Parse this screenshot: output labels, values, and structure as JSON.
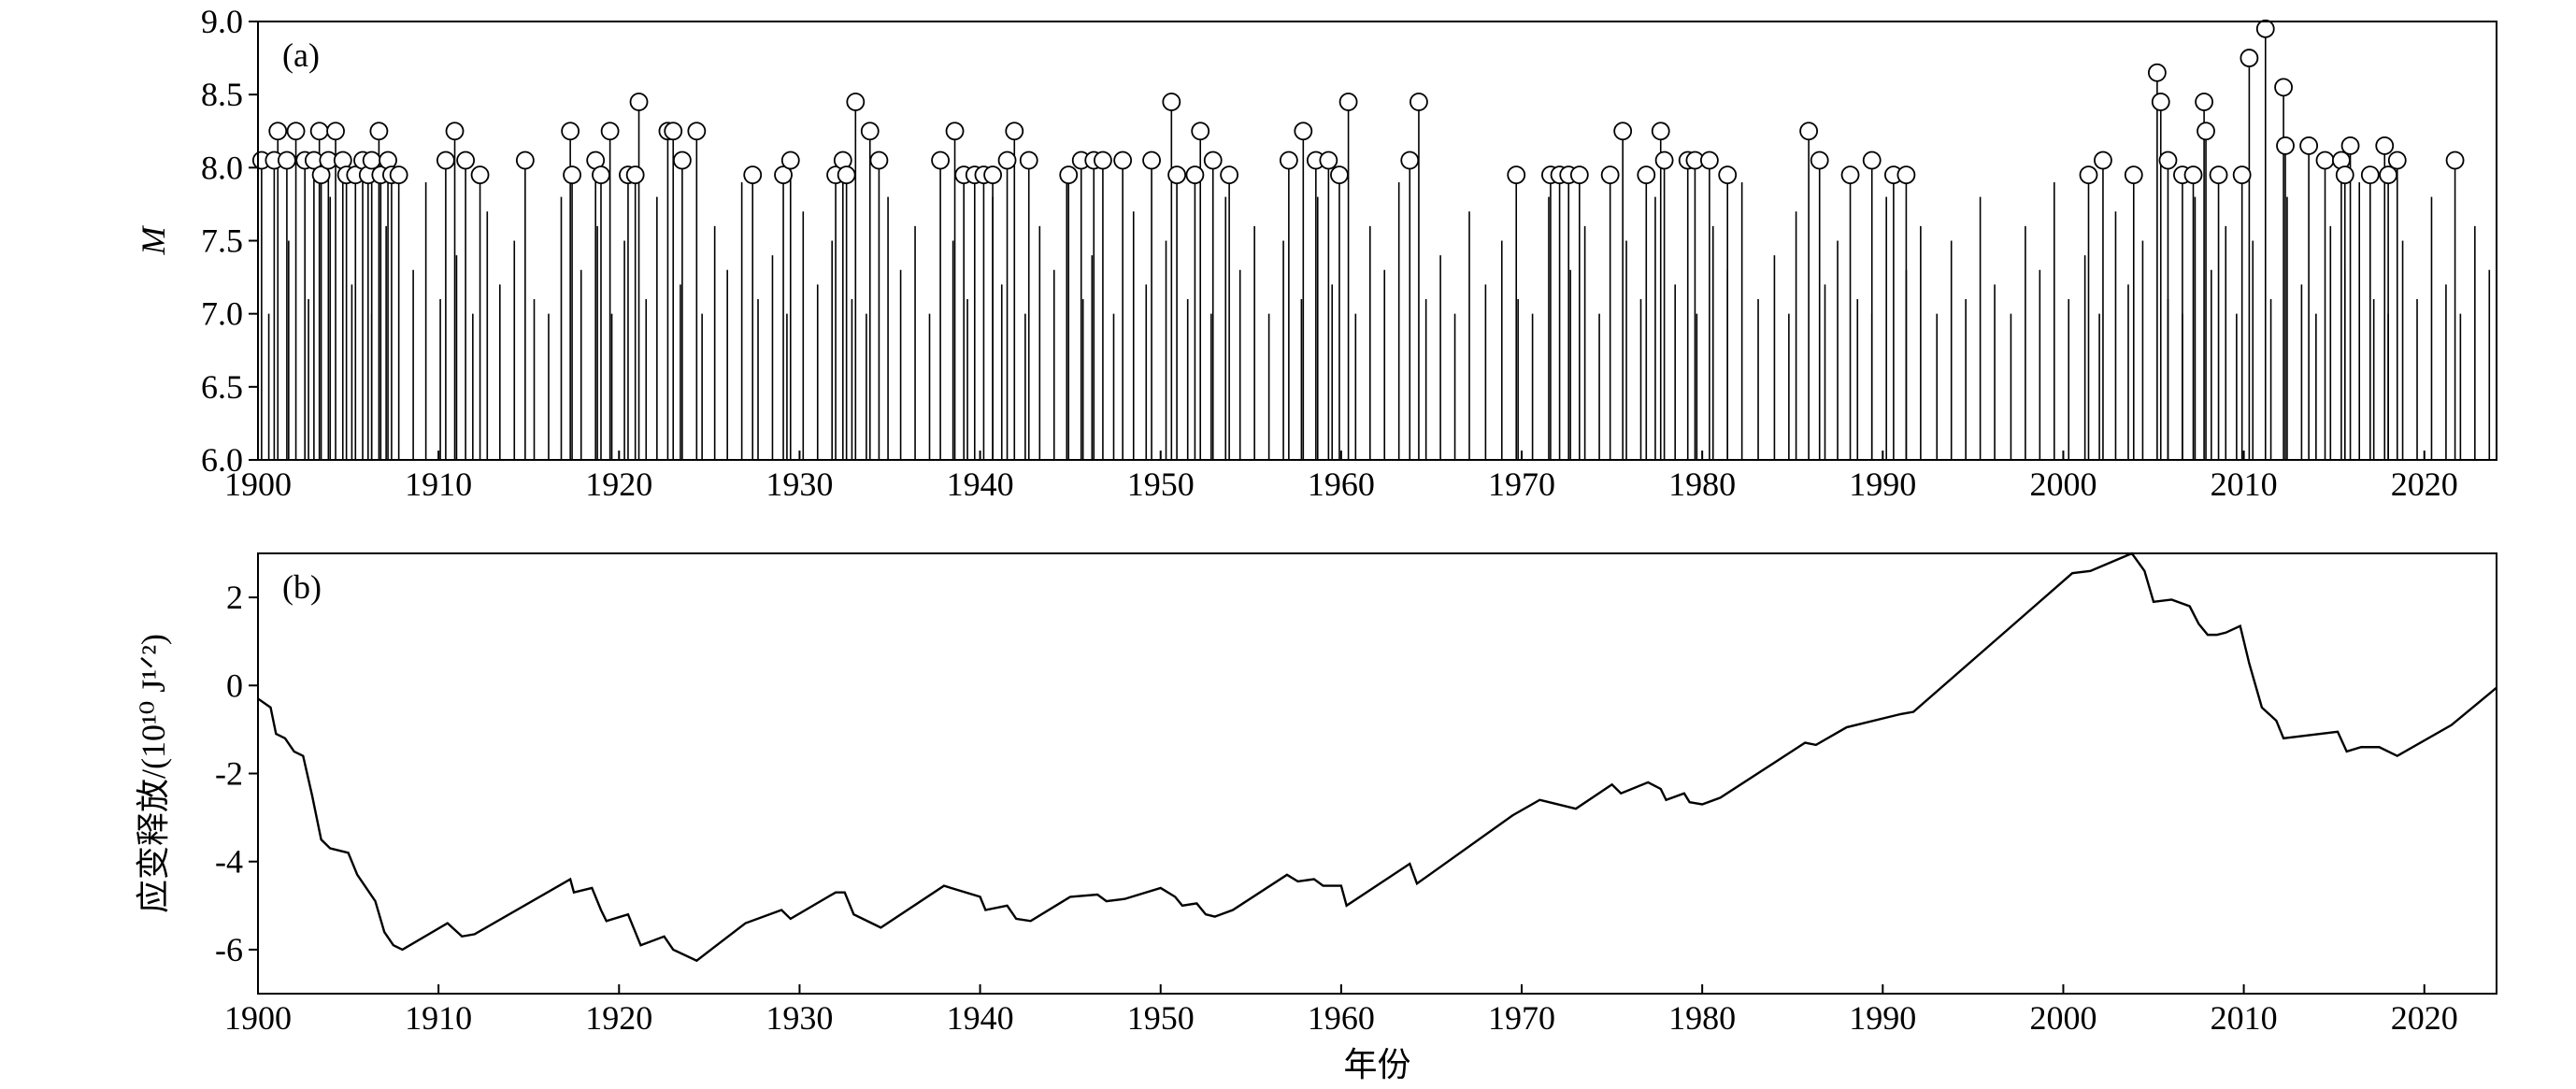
{
  "chart_data": [
    {
      "type": "stem",
      "label": "(a)",
      "ylabel": "M",
      "xlim": [
        1900,
        2024
      ],
      "xticks": [
        1900,
        1910,
        1920,
        1930,
        1940,
        1950,
        1960,
        1970,
        1980,
        1990,
        2000,
        2010,
        2020
      ],
      "ylim": [
        6,
        9
      ],
      "yticks": [
        {
          "value": 6,
          "label": "6.0"
        },
        6.5,
        {
          "value": 7,
          "label": "7.0"
        },
        7.5,
        {
          "value": 8,
          "label": "8.0"
        },
        8.5,
        {
          "value": 9,
          "label": "9.0"
        }
      ],
      "series": [
        {
          "color": "#000000",
          "marker": "none",
          "x": [
            1900.6,
            1901.7,
            1902.8,
            1904.0,
            1905.2,
            1906.3,
            1907.1,
            1908.6,
            1909.3,
            1910.1,
            1911.0,
            1911.9,
            1912.7,
            1913.4,
            1914.2,
            1915.3,
            1916.1,
            1916.8,
            1917.9,
            1918.8,
            1919.6,
            1920.3,
            1921.5,
            1922.1,
            1923.4,
            1924.6,
            1925.3,
            1926.0,
            1926.8,
            1927.7,
            1928.5,
            1929.3,
            1930.2,
            1931.0,
            1931.8,
            1932.9,
            1933.7,
            1934.9,
            1935.6,
            1936.4,
            1937.2,
            1938.5,
            1939.3,
            1940.7,
            1941.2,
            1942.5,
            1943.3,
            1944.1,
            1944.8,
            1945.7,
            1946.2,
            1947.4,
            1948.5,
            1949.2,
            1950.3,
            1951.5,
            1952.8,
            1953.6,
            1954.4,
            1955.2,
            1956.0,
            1956.8,
            1957.8,
            1958.7,
            1959.5,
            1960.8,
            1961.6,
            1962.4,
            1963.2,
            1964.7,
            1965.5,
            1966.3,
            1967.1,
            1968.0,
            1968.9,
            1969.8,
            1970.6,
            1971.5,
            1972.7,
            1973.5,
            1974.3,
            1975.8,
            1976.6,
            1977.4,
            1978.5,
            1979.7,
            1980.6,
            1981.4,
            1982.2,
            1983.1,
            1984.0,
            1984.8,
            1985.2,
            1986.8,
            1987.5,
            1988.6,
            1989.4,
            1990.2,
            1991.3,
            1992.1,
            1993.0,
            1993.8,
            1994.6,
            1995.4,
            1996.2,
            1997.1,
            1997.9,
            1998.7,
            1999.5,
            2000.3,
            2001.2,
            2002.0,
            2002.9,
            2003.6,
            2004.4,
            2005.8,
            2006.6,
            2007.3,
            2008.2,
            2009.0,
            2009.6,
            2010.5,
            2011.5,
            2012.4,
            2013.2,
            2014.0,
            2014.8,
            2015.6,
            2016.4,
            2017.2,
            2018.0,
            2018.8,
            2019.6,
            2020.4,
            2021.2,
            2022.0,
            2022.8,
            2023.6
          ],
          "values": [
            7.0,
            7.5,
            7.1,
            7.8,
            7.2,
            7.0,
            7.6,
            7.3,
            7.9,
            7.1,
            7.4,
            7.0,
            7.7,
            7.2,
            7.5,
            7.1,
            7.0,
            7.8,
            7.3,
            7.6,
            7.0,
            7.5,
            7.1,
            7.8,
            7.2,
            7.0,
            7.6,
            7.3,
            7.9,
            7.1,
            7.4,
            7.0,
            7.7,
            7.2,
            7.5,
            7.1,
            7.0,
            7.8,
            7.3,
            7.6,
            7.0,
            7.5,
            7.1,
            7.8,
            7.2,
            7.0,
            7.6,
            7.3,
            7.9,
            7.1,
            7.4,
            7.0,
            7.7,
            7.2,
            7.5,
            7.1,
            7.0,
            7.8,
            7.3,
            7.6,
            7.0,
            7.5,
            7.1,
            7.8,
            7.2,
            7.0,
            7.6,
            7.3,
            7.9,
            7.1,
            7.4,
            7.0,
            7.7,
            7.2,
            7.5,
            7.1,
            7.0,
            7.8,
            7.3,
            7.6,
            7.0,
            7.5,
            7.1,
            7.8,
            7.2,
            7.0,
            7.6,
            7.3,
            7.9,
            7.1,
            7.4,
            7.0,
            7.7,
            7.2,
            7.5,
            7.1,
            7.0,
            7.8,
            7.3,
            7.6,
            7.0,
            7.5,
            7.1,
            7.8,
            7.2,
            7.0,
            7.6,
            7.3,
            7.9,
            7.1,
            7.4,
            7.0,
            7.7,
            7.2,
            7.5,
            7.1,
            7.0,
            7.8,
            7.3,
            7.6,
            7.0,
            7.5,
            7.1,
            7.8,
            7.2,
            7.0,
            7.6,
            7.3,
            7.9,
            7.1,
            7.0,
            7.5,
            7.1,
            7.8,
            7.2,
            7.0,
            7.6,
            7.3
          ]
        },
        {
          "color": "#000000",
          "marker": "circle",
          "x": [
            1900.2,
            1900.9,
            1901.1,
            1901.6,
            1902.1,
            1902.6,
            1903.1,
            1903.4,
            1903.5,
            1903.9,
            1904.3,
            1904.7,
            1904.9,
            1905.4,
            1905.8,
            1906.1,
            1906.3,
            1906.7,
            1906.8,
            1907.2,
            1907.4,
            1907.8,
            1910.4,
            1910.9,
            1911.5,
            1912.3,
            1914.8,
            1917.3,
            1917.4,
            1918.7,
            1919.0,
            1919.5,
            1920.5,
            1920.9,
            1921.1,
            1922.7,
            1923.0,
            1923.5,
            1924.3,
            1927.4,
            1929.1,
            1929.5,
            1932.0,
            1932.4,
            1932.6,
            1933.1,
            1933.9,
            1934.4,
            1937.8,
            1938.6,
            1939.1,
            1939.7,
            1940.2,
            1940.7,
            1941.5,
            1941.9,
            1942.7,
            1944.9,
            1945.6,
            1946.3,
            1946.8,
            1947.9,
            1949.5,
            1950.6,
            1950.9,
            1951.9,
            1952.2,
            1952.9,
            1953.8,
            1957.1,
            1957.9,
            1958.6,
            1959.3,
            1959.9,
            1960.4,
            1963.8,
            1964.3,
            1969.7,
            1971.6,
            1972.1,
            1972.6,
            1973.2,
            1974.9,
            1975.6,
            1976.9,
            1977.7,
            1977.9,
            1979.2,
            1979.6,
            1980.4,
            1981.4,
            1985.9,
            1986.5,
            1988.2,
            1989.4,
            1990.6,
            1991.3,
            2001.4,
            2002.2,
            2003.9,
            2005.2,
            2005.4,
            2005.8,
            2006.6,
            2007.2,
            2007.8,
            2007.9,
            2008.6,
            2009.9,
            2010.3,
            2011.2,
            2012.2,
            2012.3,
            2013.6,
            2014.5,
            2015.4,
            2015.6,
            2015.9,
            2017.0,
            2017.8,
            2018.0,
            2018.5,
            2021.7
          ],
          "values": [
            8.05,
            8.05,
            8.25,
            8.05,
            8.25,
            8.05,
            8.05,
            8.25,
            7.95,
            8.05,
            8.25,
            8.05,
            7.95,
            7.95,
            8.05,
            7.95,
            8.05,
            8.25,
            7.95,
            8.05,
            7.95,
            7.95,
            8.05,
            8.25,
            8.05,
            7.95,
            8.05,
            8.25,
            7.95,
            8.05,
            7.95,
            8.25,
            7.95,
            7.95,
            8.45,
            8.25,
            8.25,
            8.05,
            8.25,
            7.95,
            7.95,
            8.05,
            7.95,
            8.05,
            7.95,
            8.45,
            8.25,
            8.05,
            8.05,
            8.25,
            7.95,
            7.95,
            7.95,
            7.95,
            8.05,
            8.25,
            8.05,
            7.95,
            8.05,
            8.05,
            8.05,
            8.05,
            8.05,
            8.45,
            7.95,
            7.95,
            8.25,
            8.05,
            7.95,
            8.05,
            8.25,
            8.05,
            8.05,
            7.95,
            8.45,
            8.05,
            8.45,
            7.95,
            7.95,
            7.95,
            7.95,
            7.95,
            7.95,
            8.25,
            7.95,
            8.25,
            8.05,
            8.05,
            8.05,
            8.05,
            7.95,
            8.25,
            8.05,
            7.95,
            8.05,
            7.95,
            7.95,
            7.95,
            8.05,
            7.95,
            8.65,
            8.45,
            8.05,
            7.95,
            7.95,
            8.45,
            8.25,
            7.95,
            7.95,
            8.75,
            8.95,
            8.55,
            8.15,
            8.15,
            8.05,
            8.05,
            7.95,
            8.15,
            7.95,
            8.15,
            7.95,
            8.05,
            8.05
          ]
        }
      ]
    },
    {
      "type": "line",
      "label": "(b)",
      "ylabel": "应变释放/(10¹⁰ J¹ᐟ²)",
      "xlabel": "年份",
      "xlim": [
        1900,
        2024
      ],
      "xticks": [
        1900,
        1910,
        1920,
        1930,
        1940,
        1950,
        1960,
        1970,
        1980,
        1990,
        2000,
        2010,
        2020
      ],
      "ylim": [
        -7,
        3
      ],
      "yticks": [
        -6,
        -4,
        -2,
        0,
        2
      ],
      "color": "#000000",
      "x": [
        1900,
        1900.7,
        1901,
        1901.5,
        1902,
        1902.5,
        1903,
        1903.5,
        1904,
        1905,
        1905.5,
        1906,
        1906.5,
        1907,
        1907.5,
        1908,
        1910.5,
        1911.3,
        1912,
        1917.3,
        1917.5,
        1918.5,
        1919,
        1919.3,
        1920.5,
        1921.2,
        1922.5,
        1923,
        1924.3,
        1927,
        1929,
        1929.5,
        1932,
        1932.5,
        1933,
        1934,
        1934.5,
        1938,
        1940,
        1940.3,
        1941.5,
        1942,
        1942.8,
        1945,
        1946.5,
        1947,
        1948,
        1950,
        1950.8,
        1951.2,
        1952,
        1952.5,
        1953,
        1954,
        1957,
        1957.6,
        1958.5,
        1959,
        1960,
        1960.3,
        1963.8,
        1964.2,
        1969.5,
        1971,
        1973,
        1975,
        1975.5,
        1977,
        1977.7,
        1978,
        1979,
        1979.3,
        1980,
        1981,
        1985.7,
        1986.3,
        1988,
        1990.5,
        1991,
        1991.7,
        2000.5,
        2001.5,
        2003.8,
        2004.5,
        2005,
        2006,
        2007,
        2007.5,
        2008,
        2008.5,
        2009,
        2009.8,
        2010.3,
        2011,
        2011.8,
        2012.2,
        2015.2,
        2015.7,
        2016.5,
        2017.5,
        2018.5,
        2021.5,
        2024
      ],
      "values": [
        -0.3,
        -0.5,
        -1.1,
        -1.2,
        -1.5,
        -1.6,
        -2.5,
        -3.5,
        -3.7,
        -3.8,
        -4.3,
        -4.6,
        -4.9,
        -5.6,
        -5.9,
        -6.0,
        -5.4,
        -5.7,
        -5.65,
        -4.4,
        -4.7,
        -4.6,
        -5.1,
        -5.35,
        -5.2,
        -5.9,
        -5.7,
        -6.0,
        -6.25,
        -5.4,
        -5.1,
        -5.3,
        -4.7,
        -4.7,
        -5.2,
        -5.4,
        -5.5,
        -4.55,
        -4.8,
        -5.1,
        -5.0,
        -5.3,
        -5.35,
        -4.8,
        -4.75,
        -4.9,
        -4.85,
        -4.6,
        -4.8,
        -5.0,
        -4.95,
        -5.2,
        -5.25,
        -5.1,
        -4.3,
        -4.45,
        -4.4,
        -4.55,
        -4.55,
        -5.0,
        -4.05,
        -4.5,
        -2.95,
        -2.6,
        -2.8,
        -2.25,
        -2.45,
        -2.2,
        -2.35,
        -2.6,
        -2.45,
        -2.65,
        -2.7,
        -2.55,
        -1.3,
        -1.35,
        -0.95,
        -0.7,
        -0.65,
        -0.6,
        2.55,
        2.6,
        3.0,
        2.6,
        1.9,
        1.95,
        1.8,
        1.4,
        1.15,
        1.15,
        1.2,
        1.35,
        0.5,
        -0.5,
        -0.8,
        -1.2,
        -1.05,
        -1.5,
        -1.4,
        -1.4,
        -1.6,
        -0.9,
        -0.05
      ]
    }
  ]
}
